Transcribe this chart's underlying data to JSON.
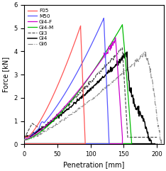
{
  "xlabel": "Penetration [mm]",
  "ylabel": "Force [kN]",
  "xlim": [
    0,
    210
  ],
  "ylim": [
    0,
    6
  ],
  "xticks": [
    0,
    50,
    100,
    150,
    200
  ],
  "yticks": [
    0,
    1,
    2,
    3,
    4,
    5,
    6
  ],
  "figsize": [
    2.34,
    2.41
  ],
  "dpi": 100,
  "series": {
    "F05": {
      "color": "#FF5555",
      "lw": 0.9,
      "ls": "solid"
    },
    "M50": {
      "color": "#5555FF",
      "lw": 0.9,
      "ls": "solid"
    },
    "GI4-F": {
      "color": "#CC00CC",
      "lw": 0.9,
      "ls": "solid"
    },
    "GI4-M": {
      "color": "#00BB00",
      "lw": 0.9,
      "ls": "solid"
    },
    "GI3": {
      "color": "#444444",
      "lw": 0.8,
      "ls": "dashed"
    },
    "GI4": {
      "color": "#000000",
      "lw": 1.1,
      "ls": "solid"
    },
    "GI6": {
      "color": "#888888",
      "lw": 0.8,
      "ls": "dashdot"
    }
  },
  "legend_display": [
    "F05",
    "M50",
    "GI4-F",
    "GI4-M",
    "GI3",
    "GI4",
    "GI6"
  ]
}
